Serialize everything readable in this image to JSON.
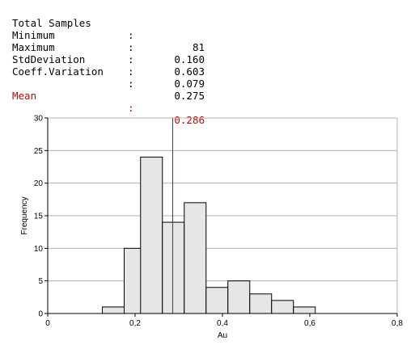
{
  "stats": [
    {
      "label": "Total Samples",
      "value": "81"
    },
    {
      "label": "Minimum",
      "value": "0.160"
    },
    {
      "label": "Maximum",
      "value": "0.603"
    },
    {
      "label": "StdDeviation",
      "value": "0.079"
    },
    {
      "label": "Coeff.Variation",
      "value": "0.275"
    }
  ],
  "mean": {
    "label": "Mean",
    "value": "0.286"
  },
  "colon": ":",
  "chart_data": {
    "type": "bar",
    "xlabel": "Au",
    "ylabel": "Frequency",
    "xlim": [
      0,
      0.8
    ],
    "ylim": [
      0,
      30
    ],
    "xticks": [
      "0",
      "0,2",
      "0,4",
      "0,6",
      "0,8"
    ],
    "yticks": [
      "0",
      "5",
      "10",
      "15",
      "20",
      "25",
      "30"
    ],
    "bin_width": 0.05,
    "bins": [
      {
        "start": 0.125,
        "count": 1
      },
      {
        "start": 0.175,
        "count": 10
      },
      {
        "start": 0.2125,
        "count": 24
      },
      {
        "start": 0.2625,
        "count": 14
      },
      {
        "start": 0.3125,
        "count": 17
      },
      {
        "start": 0.3625,
        "count": 4
      },
      {
        "start": 0.4125,
        "count": 5
      },
      {
        "start": 0.4625,
        "count": 3
      },
      {
        "start": 0.5125,
        "count": 2
      },
      {
        "start": 0.5625,
        "count": 1
      }
    ],
    "mean_line": 0.286,
    "grid": true,
    "colors": {
      "bar_fill": "#e6e6e6",
      "bar_stroke": "#000000",
      "mean_line": "#cc0000",
      "grid": "#b0b0b0"
    }
  }
}
